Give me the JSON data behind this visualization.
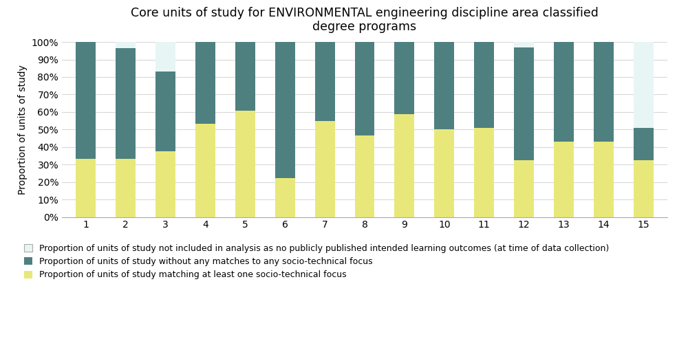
{
  "title": "Core units of study for ENVIRONMENTAL engineering discipline area classified\ndegree programs",
  "ylabel": "Proportion of units of study",
  "categories": [
    1,
    2,
    3,
    4,
    5,
    6,
    7,
    8,
    9,
    10,
    11,
    12,
    13,
    14,
    15
  ],
  "yellow": [
    0.333,
    0.333,
    0.375,
    0.531,
    0.609,
    0.222,
    0.547,
    0.464,
    0.588,
    0.5,
    0.51,
    0.323,
    0.432,
    0.432,
    0.323
  ],
  "teal": [
    0.667,
    0.633,
    0.458,
    0.469,
    0.391,
    0.778,
    0.453,
    0.536,
    0.412,
    0.5,
    0.49,
    0.645,
    0.568,
    0.568,
    0.188
  ],
  "light": [
    0.0,
    0.033,
    0.167,
    0.0,
    0.0,
    0.0,
    0.0,
    0.0,
    0.0,
    0.0,
    0.0,
    0.032,
    0.0,
    0.0,
    0.489
  ],
  "color_yellow": "#E8E87A",
  "color_teal": "#4E8080",
  "color_light": "#E8F5F5",
  "legend_labels": [
    "Proportion of units of study not included in analysis as no publicly published intended learning outcomes (at time of data collection)",
    "Proportion of units of study without any matches to any socio-technical focus",
    "Proportion of units of study matching at least one socio-technical focus"
  ],
  "ytick_labels": [
    "0%",
    "10%",
    "20%",
    "30%",
    "40%",
    "50%",
    "60%",
    "70%",
    "80%",
    "90%",
    "100%"
  ],
  "ytick_vals": [
    0.0,
    0.1,
    0.2,
    0.3,
    0.4,
    0.5,
    0.6,
    0.7,
    0.8,
    0.9,
    1.0
  ],
  "bar_width": 0.5,
  "background_color": "#FFFFFF",
  "grid_color": "#D8D8D8",
  "title_fontsize": 12.5,
  "axis_fontsize": 10,
  "tick_fontsize": 10,
  "legend_fontsize": 9
}
